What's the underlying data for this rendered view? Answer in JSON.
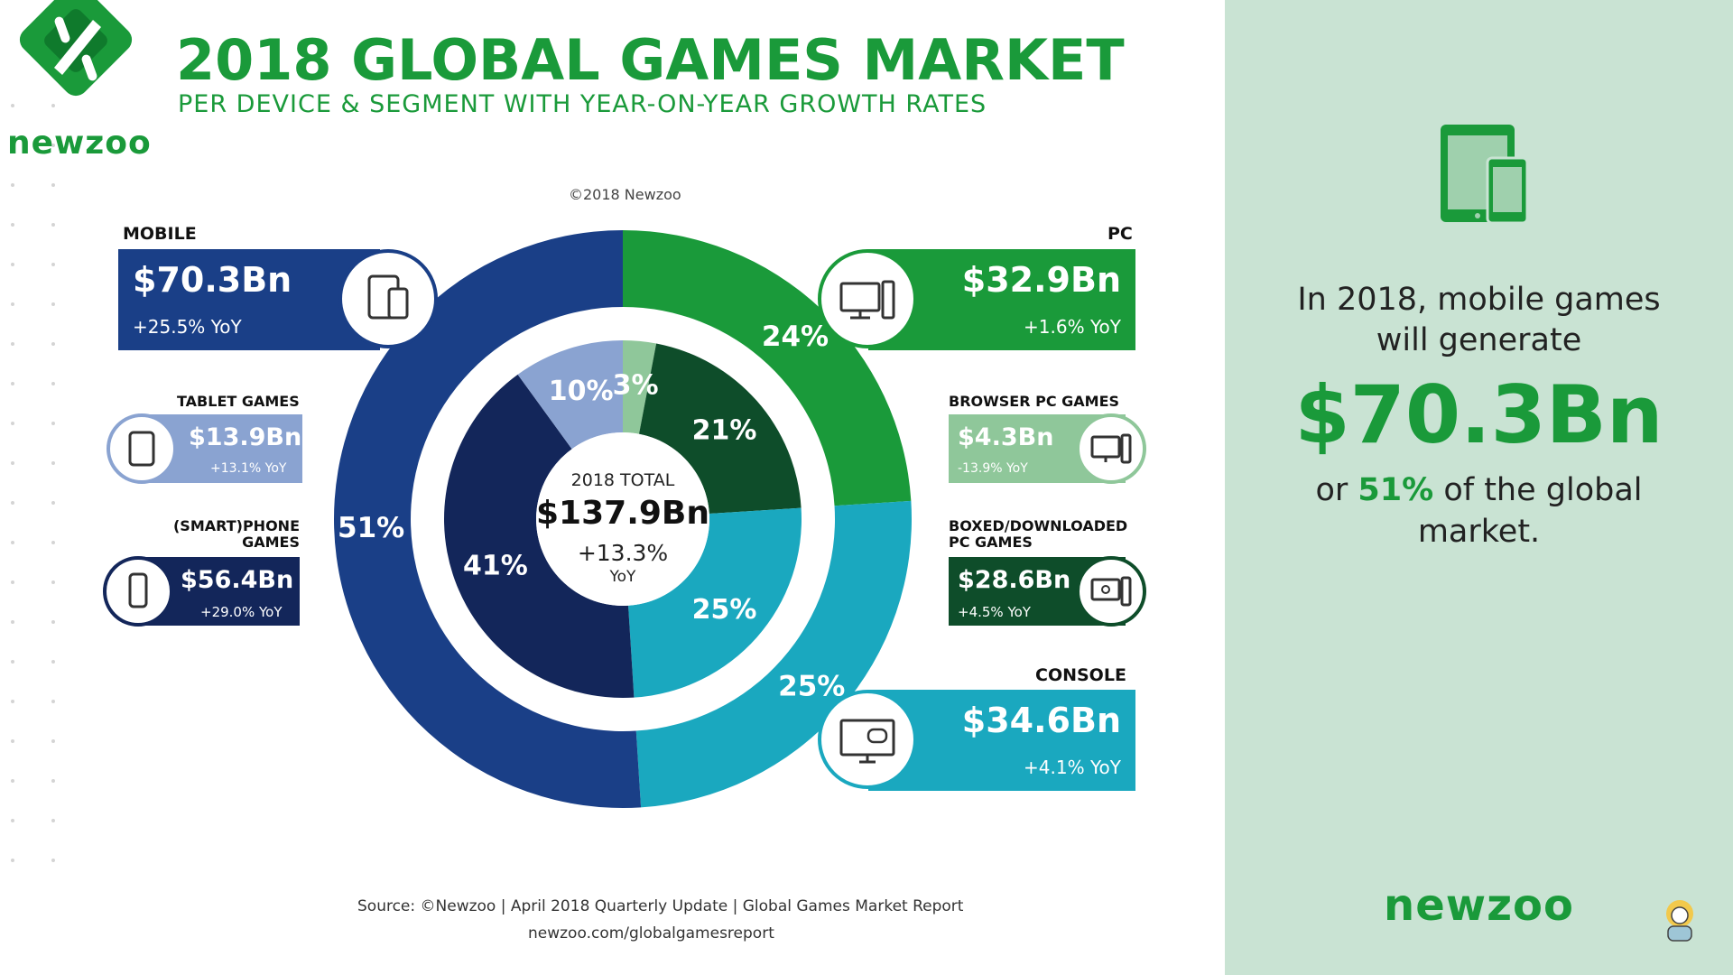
{
  "brand": {
    "name": "newzoo",
    "color": "#1a9a3a"
  },
  "header": {
    "title": "2018 GLOBAL GAMES MARKET",
    "subtitle": "PER DEVICE & SEGMENT WITH YEAR-ON-YEAR GROWTH RATES",
    "copyright": "©2018 Newzoo"
  },
  "chart_data": {
    "type": "pie",
    "variant": "nested-donut",
    "title": "2018 GLOBAL GAMES MARKET",
    "subtitle": "PER DEVICE & SEGMENT WITH YEAR-ON-YEAR GROWTH RATES",
    "center": {
      "label": "2018 TOTAL",
      "value": "$137.9Bn",
      "growth": "+13.3%",
      "growth_unit": "YoY"
    },
    "outer_ring": [
      {
        "name": "MOBILE",
        "value": 70.3,
        "percent": 51,
        "pct_label": "51%",
        "value_label": "$70.3Bn",
        "yoy": "+25.5% YoY",
        "color": "#1a3f87",
        "icon": "mobile-devices-icon"
      },
      {
        "name": "PC",
        "value": 32.9,
        "percent": 24,
        "pct_label": "24%",
        "value_label": "$32.9Bn",
        "yoy": "+1.6% YoY",
        "color": "#1a9a3a",
        "icon": "desktop-computer-icon"
      },
      {
        "name": "CONSOLE",
        "value": 34.6,
        "percent": 25,
        "pct_label": "25%",
        "value_label": "$34.6Bn",
        "yoy": "+4.1% YoY",
        "color": "#1aa8bf",
        "icon": "console-tv-gamepad-icon"
      }
    ],
    "inner_ring": [
      {
        "name": "BROWSER PC GAMES",
        "parent": "PC",
        "value": 4.3,
        "percent": 3,
        "pct_label": "3%",
        "value_label": "$4.3Bn",
        "yoy": "-13.9% YoY",
        "color": "#8fc79a",
        "icon": "browser-pc-icon"
      },
      {
        "name": "BOXED/DOWNLOADED PC GAMES",
        "parent": "PC",
        "value": 28.6,
        "percent": 21,
        "pct_label": "21%",
        "value_label": "$28.6Bn",
        "yoy": "+4.5% YoY",
        "color": "#0e4d2a",
        "icon": "download-pc-icon"
      },
      {
        "name": "CONSOLE",
        "parent": "CONSOLE",
        "value": 34.6,
        "percent": 25,
        "pct_label": "25%",
        "value_label": "$34.6Bn",
        "yoy": "+4.1% YoY",
        "color": "#1aa8bf"
      },
      {
        "name": "(SMART)PHONE GAMES",
        "parent": "MOBILE",
        "value": 56.4,
        "percent": 41,
        "pct_label": "41%",
        "value_label": "$56.4Bn",
        "yoy": "+29.0% YoY",
        "color": "#13265a",
        "icon": "smartphone-icon"
      },
      {
        "name": "TABLET GAMES",
        "parent": "MOBILE",
        "value": 13.9,
        "percent": 10,
        "pct_label": "10%",
        "value_label": "$13.9Bn",
        "yoy": "+13.1% YoY",
        "color": "#8aa3d1",
        "icon": "tablet-icon"
      }
    ],
    "legend": "side-boxes"
  },
  "sub_labels": {
    "tablet": "TABLET GAMES",
    "phone_line1": "(SMART)PHONE",
    "phone_line2": "GAMES",
    "browser": "BROWSER PC GAMES",
    "boxed_line1": "BOXED/DOWNLOADED",
    "boxed_line2": "PC GAMES"
  },
  "footer": {
    "source": "Source: ©Newzoo | April 2018 Quarterly Update | Global Games Market Report",
    "url": "newzoo.com/globalgamesreport"
  },
  "callout": {
    "line1": "In 2018, mobile games",
    "line2": "will generate",
    "big_value": "$70.3Bn",
    "pre": "or ",
    "pct": "51%",
    "post": " of the global",
    "line4": "market."
  }
}
